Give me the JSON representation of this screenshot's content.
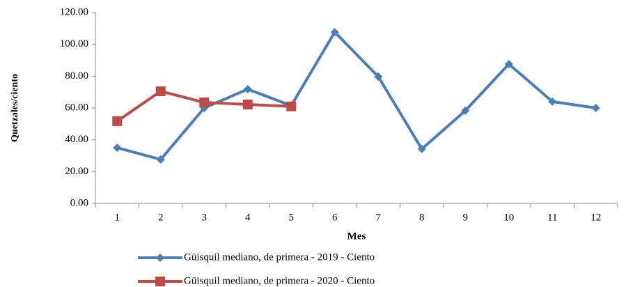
{
  "chart_data": {
    "type": "line",
    "y_label": "Quetzales/ciento",
    "x_label": "Mes",
    "categories": [
      "1",
      "2",
      "3",
      "4",
      "5",
      "6",
      "7",
      "8",
      "9",
      "10",
      "11",
      "12"
    ],
    "series": [
      {
        "name": "Güisquil mediano, de primera - 2019 - Ciento",
        "color": "#4a7ebb",
        "marker": "diamond",
        "values": [
          35.0,
          27.6,
          60.0,
          71.8,
          61.5,
          107.7,
          79.7,
          34.2,
          58.3,
          87.6,
          64.0,
          60.0
        ]
      },
      {
        "name": "Güisquil mediano, de primera - 2020 - Ciento",
        "color": "#be4b48",
        "marker": "square",
        "values": [
          51.7,
          70.5,
          63.5,
          62.2,
          61.0,
          null,
          null,
          null,
          null,
          null,
          null,
          null
        ]
      }
    ],
    "ylim": [
      0,
      120
    ],
    "yticks": [
      {
        "value": 0,
        "label": "0.00"
      },
      {
        "value": 20,
        "label": "20.00"
      },
      {
        "value": 40,
        "label": "40.00"
      },
      {
        "value": 60,
        "label": "60.00"
      },
      {
        "value": 80,
        "label": "80.00"
      },
      {
        "value": 100,
        "label": "100.00"
      },
      {
        "value": 120,
        "label": "120.00"
      }
    ],
    "grid": false
  }
}
